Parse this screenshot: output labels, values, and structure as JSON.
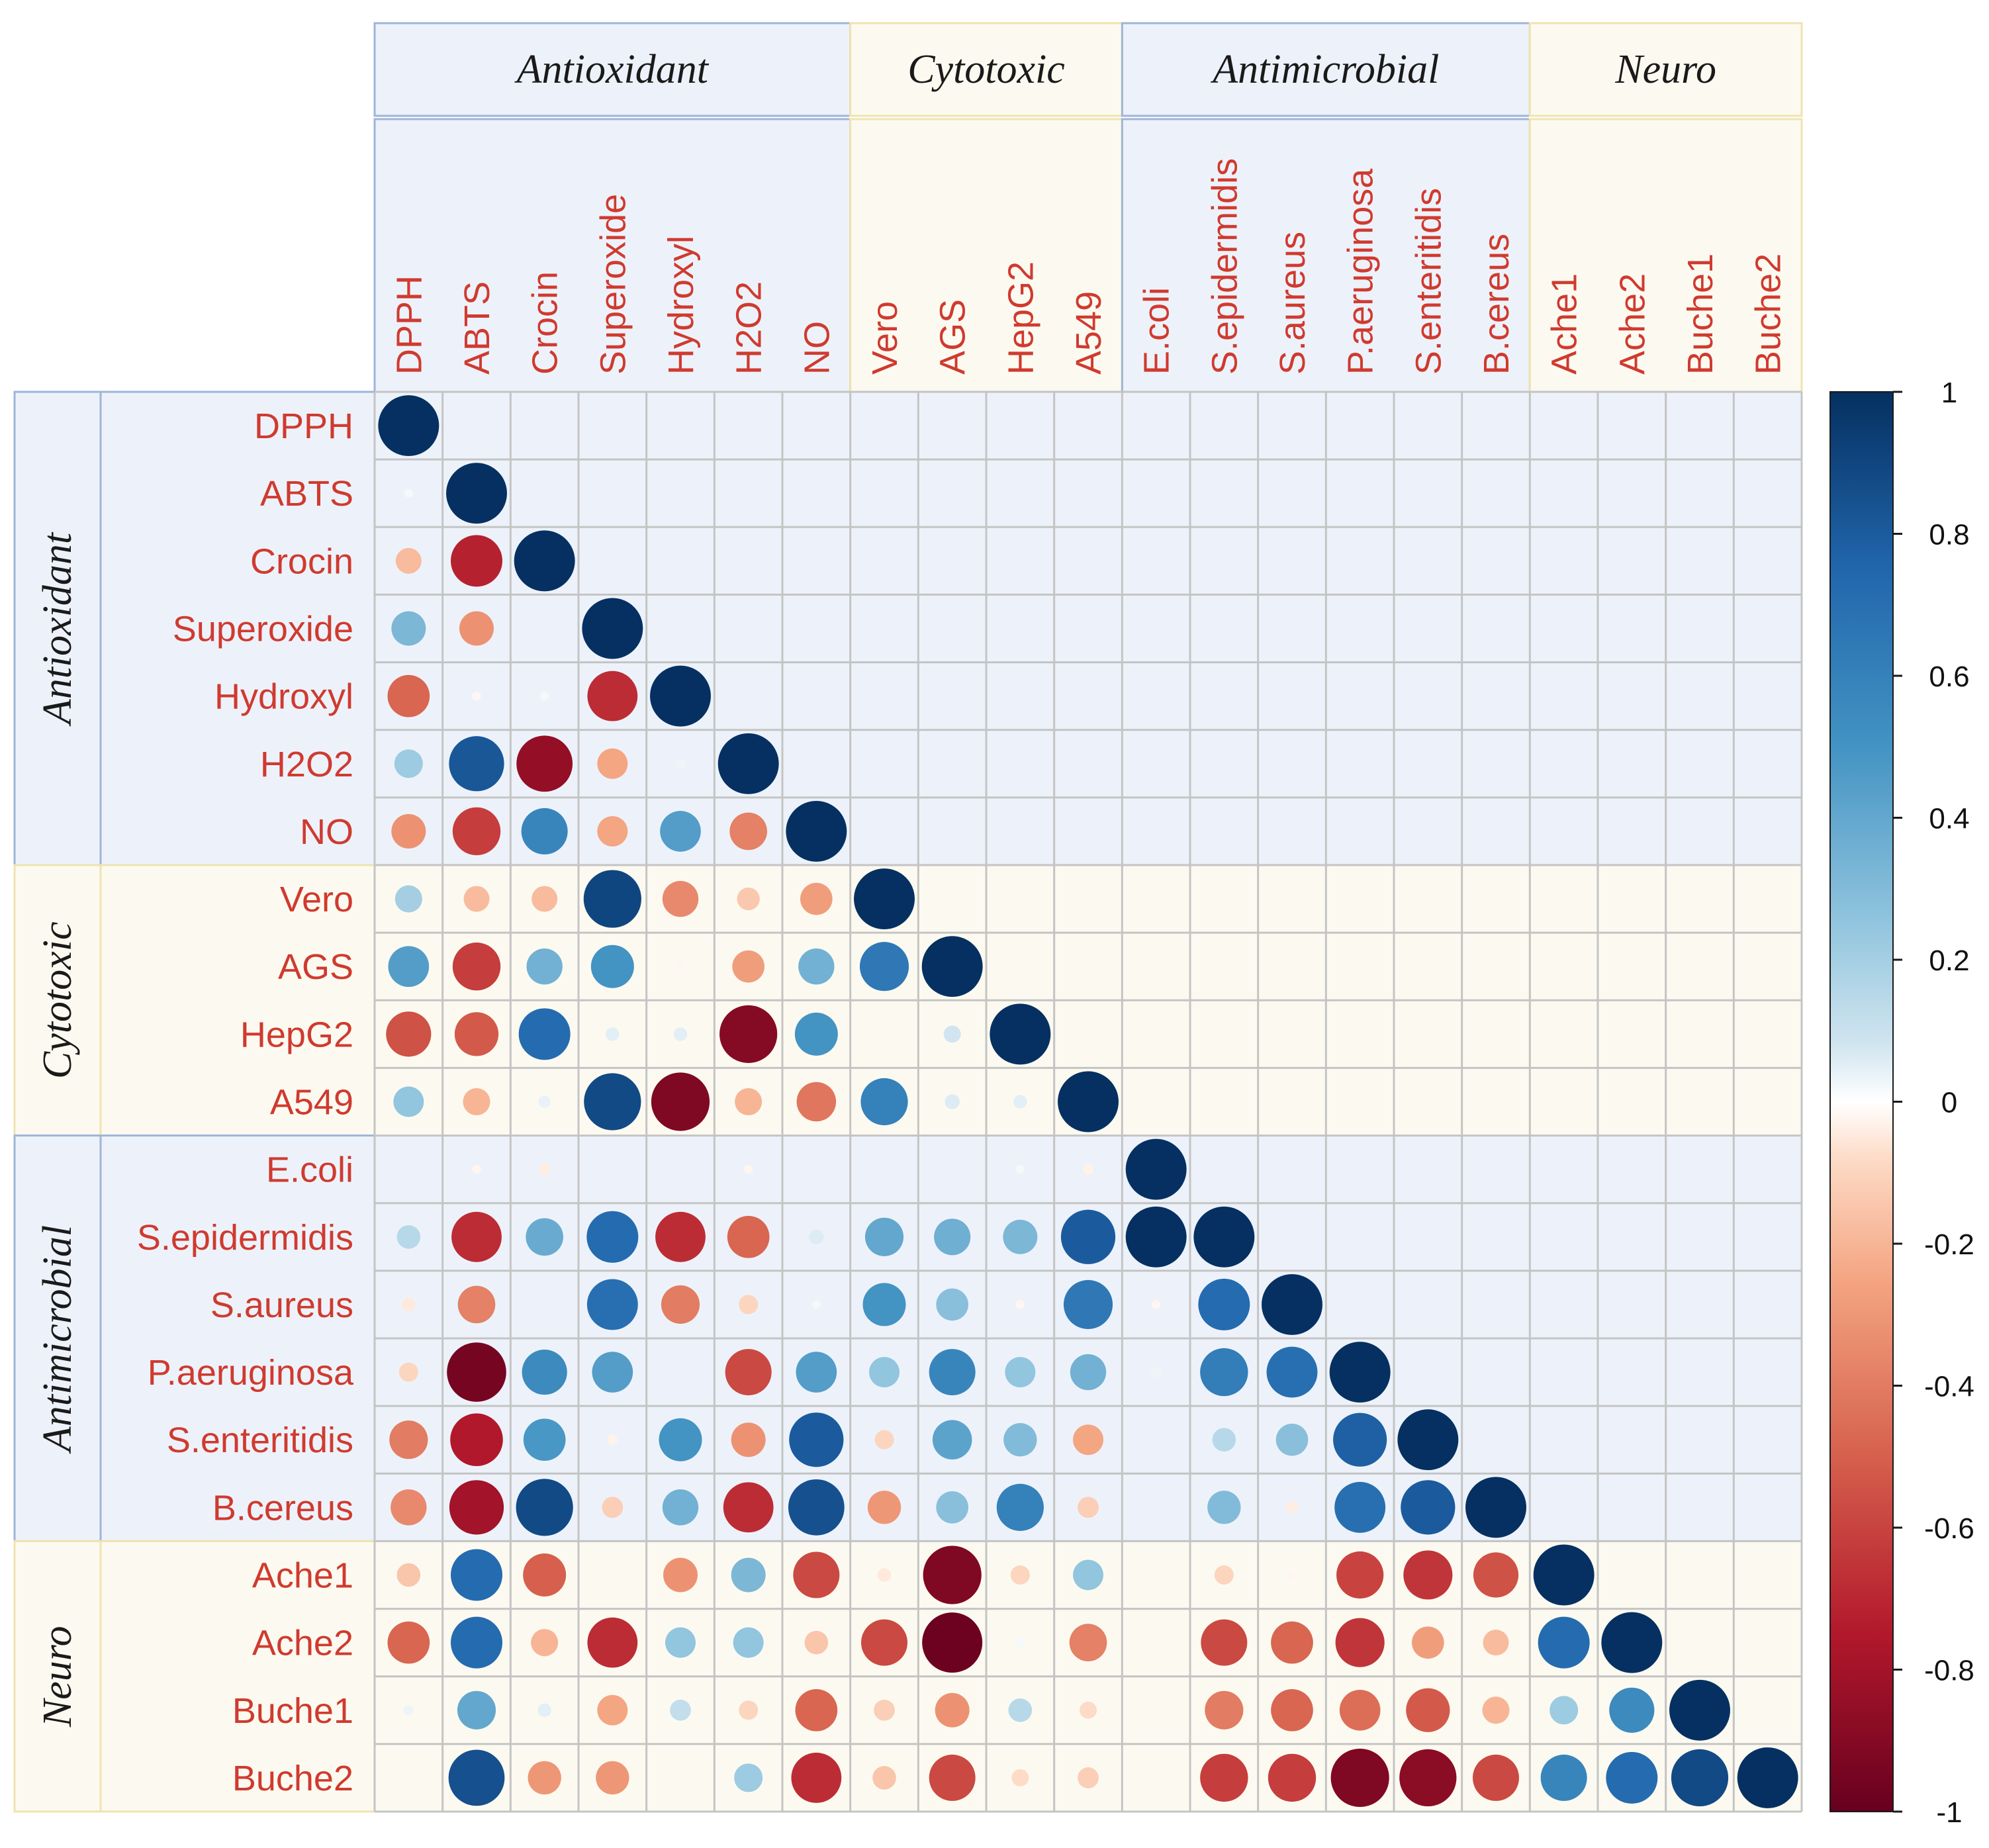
{
  "chart_data": {
    "type": "heatmap",
    "style": "correlation-circles-lower-triangle",
    "variables": [
      "DPPH",
      "ABTS",
      "Crocin",
      "Superoxide",
      "Hydroxyl",
      "H2O2",
      "NO",
      "Vero",
      "AGS",
      "HepG2",
      "A549",
      "E.coli",
      "S.epidermidis",
      "S.aureus",
      "P.aeruginosa",
      "S.enteritidis",
      "B.cereus",
      "Ache1",
      "Ache2",
      "Buche1",
      "Buche2"
    ],
    "groups": [
      {
        "name": "Antioxidant",
        "start": 0,
        "end": 6,
        "fill": "#edf2fa",
        "border": "#9fb4d8"
      },
      {
        "name": "Cytotoxic",
        "start": 7,
        "end": 10,
        "fill": "#fcfaf0",
        "border": "#efe3b0"
      },
      {
        "name": "Antimicrobial",
        "start": 11,
        "end": 16,
        "fill": "#edf2fa",
        "border": "#9fb4d8"
      },
      {
        "name": "Neuro",
        "start": 17,
        "end": 20,
        "fill": "#fcfaf0",
        "border": "#efe3b0"
      }
    ],
    "rows": [
      [
        1.0
      ],
      [
        0.02,
        1.0
      ],
      [
        -0.18,
        -0.72,
        1.0
      ],
      [
        0.32,
        -0.32,
        0.0,
        1.0
      ],
      [
        -0.48,
        -0.02,
        0.02,
        -0.68,
        1.0
      ],
      [
        0.22,
        0.82,
        -0.85,
        -0.25,
        0.03,
        1.0
      ],
      [
        -0.32,
        -0.62,
        0.58,
        -0.25,
        0.45,
        -0.38,
        1.0
      ],
      [
        0.2,
        -0.18,
        -0.18,
        0.9,
        -0.35,
        -0.14,
        -0.28,
        1.0
      ],
      [
        0.45,
        -0.62,
        0.35,
        0.5,
        -0.02,
        -0.28,
        0.35,
        0.65,
        1.0
      ],
      [
        -0.55,
        -0.52,
        0.72,
        0.05,
        0.05,
        -0.9,
        0.5,
        0.0,
        0.08,
        1.0
      ],
      [
        0.25,
        -0.2,
        0.04,
        0.88,
        -0.92,
        -0.2,
        -0.42,
        0.6,
        0.06,
        0.05,
        1.0
      ],
      [
        0.0,
        -0.02,
        -0.04,
        0.0,
        0.0,
        -0.02,
        0.0,
        0.0,
        0.0,
        0.02,
        -0.03,
        1.0
      ],
      [
        0.15,
        -0.68,
        0.38,
        0.72,
        -0.68,
        -0.48,
        0.06,
        0.4,
        0.36,
        0.32,
        0.8,
        1.0,
        1.0
      ],
      [
        -0.05,
        -0.38,
        0.0,
        0.7,
        -0.4,
        -0.1,
        0.02,
        0.5,
        0.28,
        -0.02,
        0.65,
        -0.02,
        0.72,
        1.0
      ],
      [
        -0.1,
        -0.95,
        0.55,
        0.45,
        0.0,
        -0.58,
        0.45,
        0.25,
        0.58,
        0.25,
        0.35,
        0.03,
        0.62,
        0.7,
        1.0
      ],
      [
        -0.4,
        -0.75,
        0.48,
        -0.03,
        0.5,
        -0.32,
        0.8,
        -0.1,
        0.42,
        0.3,
        -0.25,
        0.0,
        0.15,
        0.28,
        0.78,
        1.0
      ],
      [
        -0.35,
        -0.8,
        0.88,
        -0.12,
        0.35,
        -0.68,
        0.85,
        -0.3,
        0.28,
        0.6,
        -0.12,
        0.0,
        0.3,
        -0.04,
        0.7,
        0.8,
        1.0
      ],
      [
        -0.15,
        0.72,
        -0.5,
        0.0,
        -0.32,
        0.32,
        -0.58,
        -0.05,
        -0.92,
        -0.1,
        0.25,
        0.0,
        -0.1,
        -0.02,
        -0.6,
        -0.65,
        -0.55,
        1.0
      ],
      [
        -0.48,
        0.72,
        -0.2,
        -0.68,
        0.25,
        0.25,
        -0.15,
        -0.58,
        -0.98,
        0.02,
        -0.38,
        0.0,
        -0.58,
        -0.48,
        -0.65,
        -0.28,
        -0.18,
        0.72,
        1.0
      ],
      [
        0.03,
        0.4,
        0.05,
        -0.25,
        0.12,
        -0.1,
        -0.48,
        -0.12,
        -0.32,
        0.15,
        -0.08,
        0.0,
        -0.4,
        -0.48,
        -0.45,
        -0.52,
        -0.2,
        0.22,
        0.55,
        1.0
      ],
      [
        0.0,
        0.85,
        -0.3,
        -0.3,
        0.0,
        0.22,
        -0.68,
        -0.15,
        -0.58,
        -0.08,
        -0.12,
        0.0,
        -0.62,
        -0.62,
        -0.92,
        -0.88,
        -0.58,
        0.58,
        0.72,
        0.88,
        1.0
      ]
    ],
    "colorbar": {
      "range": [
        -1,
        1
      ],
      "ticks": [
        "1",
        "0.8",
        "0.6",
        "0.4",
        "0.2",
        "0",
        "-0.2",
        "-0.4",
        "-0.6",
        "-0.8",
        "-1"
      ],
      "stops": [
        {
          "v": -1.0,
          "c": "#67001f"
        },
        {
          "v": -0.75,
          "c": "#b2182b"
        },
        {
          "v": -0.5,
          "c": "#d6604d"
        },
        {
          "v": -0.25,
          "c": "#f4a582"
        },
        {
          "v": -0.08,
          "c": "#fddbc7"
        },
        {
          "v": 0.0,
          "c": "#ffffff"
        },
        {
          "v": 0.08,
          "c": "#d1e5f0"
        },
        {
          "v": 0.25,
          "c": "#92c5de"
        },
        {
          "v": 0.5,
          "c": "#4393c3"
        },
        {
          "v": 0.75,
          "c": "#2166ac"
        },
        {
          "v": 1.0,
          "c": "#053061"
        }
      ]
    }
  }
}
